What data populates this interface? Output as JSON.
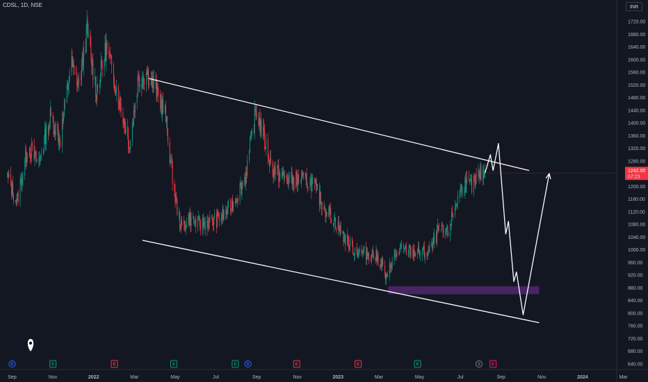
{
  "header": {
    "title": "CDSL, 1D, NSE",
    "currency": "INR"
  },
  "chart_data": {
    "type": "candlestick",
    "symbol": "CDSL",
    "interval": "1D",
    "exchange": "NSE",
    "currency": "INR",
    "ylim": [
      630,
      1740
    ],
    "y_ticks": [
      "1720.00",
      "1680.00",
      "1640.00",
      "1600.00",
      "1560.00",
      "1520.00",
      "1480.00",
      "1440.00",
      "1400.00",
      "1360.00",
      "1320.00",
      "1280.00",
      "1240.00",
      "1200.00",
      "1160.00",
      "1120.00",
      "1080.00",
      "1040.00",
      "1000.00",
      "960.00",
      "920.00",
      "880.00",
      "840.00",
      "800.00",
      "760.00",
      "720.00",
      "680.00",
      "640.00"
    ],
    "x_ticks": [
      "Sep",
      "Nov",
      "2022",
      "Mar",
      "May",
      "Jul",
      "Sep",
      "Nov",
      "2023",
      "Mar",
      "May",
      "Jul",
      "Sep",
      "Nov",
      "2024",
      "Mar"
    ],
    "last_price": {
      "value": "1242.00",
      "countdown": "07:23"
    },
    "colors": {
      "up": "#089981",
      "down": "#f23645",
      "background": "#131722",
      "drawing": "#ffffff",
      "zone": "#5b2a7a"
    },
    "price_path": [
      [
        "2021-08-25",
        1230
      ],
      [
        "2021-09-08",
        1150
      ],
      [
        "2021-09-25",
        1330
      ],
      [
        "2021-10-10",
        1270
      ],
      [
        "2021-10-28",
        1420
      ],
      [
        "2021-11-12",
        1350
      ],
      [
        "2021-11-28",
        1590
      ],
      [
        "2021-12-10",
        1520
      ],
      [
        "2021-12-22",
        1690
      ],
      [
        "2022-01-05",
        1500
      ],
      [
        "2022-01-20",
        1640
      ],
      [
        "2022-02-05",
        1500
      ],
      [
        "2022-02-24",
        1330
      ],
      [
        "2022-03-08",
        1530
      ],
      [
        "2022-03-22",
        1560
      ],
      [
        "2022-04-05",
        1500
      ],
      [
        "2022-04-18",
        1430
      ],
      [
        "2022-04-26",
        1280
      ],
      [
        "2022-05-04",
        1150
      ],
      [
        "2022-05-12",
        1070
      ],
      [
        "2022-05-24",
        1100
      ],
      [
        "2022-06-08",
        1080
      ],
      [
        "2022-06-28",
        1090
      ],
      [
        "2022-07-15",
        1110
      ],
      [
        "2022-08-01",
        1160
      ],
      [
        "2022-08-16",
        1230
      ],
      [
        "2022-09-01",
        1440
      ],
      [
        "2022-09-12",
        1360
      ],
      [
        "2022-09-24",
        1260
      ],
      [
        "2022-10-10",
        1230
      ],
      [
        "2022-10-25",
        1220
      ],
      [
        "2022-11-10",
        1220
      ],
      [
        "2022-11-25",
        1210
      ],
      [
        "2022-12-10",
        1140
      ],
      [
        "2022-12-25",
        1100
      ],
      [
        "2023-01-08",
        1050
      ],
      [
        "2023-01-25",
        1000
      ],
      [
        "2023-02-10",
        990
      ],
      [
        "2023-02-24",
        985
      ],
      [
        "2023-03-08",
        960
      ],
      [
        "2023-03-16",
        900
      ],
      [
        "2023-03-22",
        960
      ],
      [
        "2023-04-05",
        1000
      ],
      [
        "2023-04-20",
        995
      ],
      [
        "2023-05-05",
        990
      ],
      [
        "2023-05-20",
        995
      ],
      [
        "2023-06-01",
        1060
      ],
      [
        "2023-06-15",
        1050
      ],
      [
        "2023-06-25",
        1130
      ],
      [
        "2023-07-08",
        1210
      ],
      [
        "2023-07-22",
        1200
      ],
      [
        "2023-08-03",
        1240
      ],
      [
        "2023-08-10",
        1242
      ]
    ],
    "drawings": {
      "channel_upper": [
        [
          "2022-03-25",
          1540
        ],
        [
          "2023-10-15",
          1250
        ]
      ],
      "channel_lower": [
        [
          "2022-03-15",
          1030
        ],
        [
          "2023-10-30",
          770
        ]
      ],
      "demand_zone": {
        "x": [
          "2023-03-18",
          "2023-10-30"
        ],
        "y": [
          860,
          885
        ]
      },
      "projection": [
        [
          "2023-08-10",
          1242
        ],
        [
          "2023-08-18",
          1300
        ],
        [
          "2023-08-22",
          1250
        ],
        [
          "2023-08-30",
          1335
        ],
        [
          "2023-09-10",
          1050
        ],
        [
          "2023-09-14",
          1090
        ],
        [
          "2023-09-22",
          900
        ],
        [
          "2023-09-26",
          930
        ],
        [
          "2023-10-06",
          795
        ],
        [
          "2023-11-14",
          1240
        ]
      ]
    },
    "events": [
      {
        "date": "2021-09-01",
        "kind": "dividend",
        "label": "D"
      },
      {
        "date": "2021-11-01",
        "kind": "earnings",
        "label": "E"
      },
      {
        "date": "2022-02-01",
        "kind": "earnings-red",
        "label": "E"
      },
      {
        "date": "2022-05-01",
        "kind": "earnings",
        "label": "E"
      },
      {
        "date": "2022-08-01",
        "kind": "earnings",
        "label": "E"
      },
      {
        "date": "2022-08-20",
        "kind": "dividend",
        "label": "D"
      },
      {
        "date": "2022-11-01",
        "kind": "earnings-red",
        "label": "E"
      },
      {
        "date": "2023-02-01",
        "kind": "earnings-red",
        "label": "E"
      },
      {
        "date": "2023-05-01",
        "kind": "earnings",
        "label": "E"
      },
      {
        "date": "2023-08-01",
        "kind": "split",
        "label": "S"
      },
      {
        "date": "2023-08-22",
        "kind": "earnings-upcoming",
        "label": "E"
      }
    ]
  }
}
